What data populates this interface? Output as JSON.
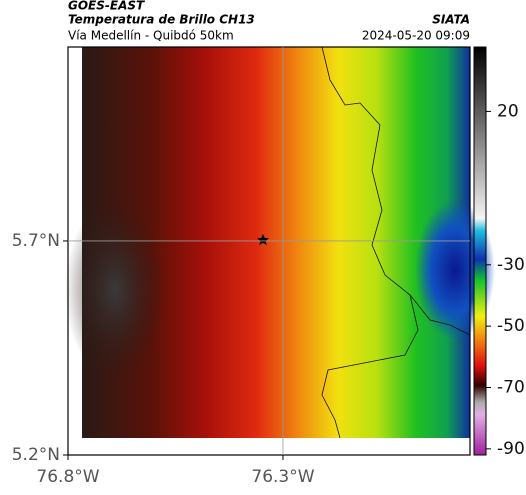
{
  "header": {
    "source": "GOES-EAST",
    "title": "Temperatura de Brillo CH13",
    "brand": "SIATA",
    "subtitle": "Vía Medellín - Quibdó 50km",
    "timestamp": "2024-05-20 09:09"
  },
  "map": {
    "xlim": [
      -76.8,
      -75.865
    ],
    "ylim": [
      5.2,
      6.153
    ],
    "xticks": [
      {
        "value": -76.8,
        "label": "76.8°W"
      },
      {
        "value": -76.3,
        "label": "76.3°W"
      }
    ],
    "yticks": [
      {
        "value": 5.2,
        "label": "5.2°N"
      },
      {
        "value": 5.7,
        "label": "5.7°N"
      }
    ],
    "colorbar": {
      "lim": [
        -92,
        41
      ],
      "ticks": [
        20,
        -30,
        -50,
        -70,
        -90
      ]
    }
  }
}
